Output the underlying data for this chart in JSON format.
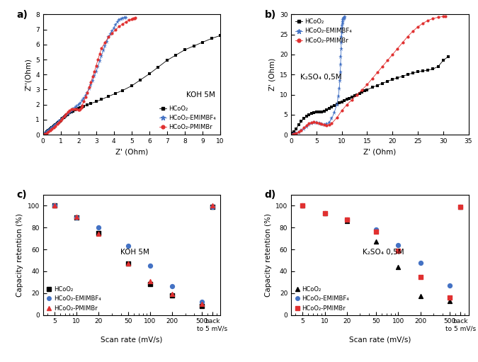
{
  "panel_a": {
    "title": "a)",
    "xlabel": "Z' (Ohm)",
    "ylabel": "Z''(Ohm)",
    "xlim": [
      0,
      10
    ],
    "ylim": [
      0,
      8
    ],
    "yticks": [
      0,
      1,
      2,
      3,
      4,
      5,
      6,
      7,
      8
    ],
    "xticks": [
      0,
      1,
      2,
      3,
      4,
      5,
      6,
      7,
      8,
      9,
      10
    ],
    "label_text": "KOH 5M",
    "black": {
      "x": [
        0.05,
        0.1,
        0.15,
        0.2,
        0.25,
        0.3,
        0.35,
        0.4,
        0.45,
        0.5,
        0.55,
        0.6,
        0.65,
        0.7,
        0.75,
        0.8,
        0.85,
        0.9,
        0.95,
        1.0,
        1.05,
        1.1,
        1.15,
        1.2,
        1.25,
        1.3,
        1.35,
        1.4,
        1.5,
        1.6,
        1.7,
        1.8,
        1.9,
        2.0,
        2.1,
        2.2,
        2.3,
        2.5,
        2.7,
        3.0,
        3.3,
        3.7,
        4.1,
        4.5,
        5.0,
        5.5,
        6.0,
        6.5,
        7.0,
        7.5,
        8.0,
        8.5,
        9.0,
        9.5,
        10.0
      ],
      "y": [
        0.03,
        0.07,
        0.12,
        0.17,
        0.22,
        0.27,
        0.32,
        0.37,
        0.42,
        0.47,
        0.52,
        0.57,
        0.62,
        0.67,
        0.72,
        0.77,
        0.82,
        0.87,
        0.92,
        0.97,
        1.02,
        1.07,
        1.12,
        1.17,
        1.22,
        1.27,
        1.32,
        1.37,
        1.45,
        1.52,
        1.58,
        1.64,
        1.7,
        1.75,
        1.8,
        1.85,
        1.9,
        2.0,
        2.08,
        2.2,
        2.35,
        2.55,
        2.75,
        2.95,
        3.25,
        3.65,
        4.05,
        4.5,
        4.95,
        5.3,
        5.65,
        5.9,
        6.15,
        6.4,
        6.6
      ]
    },
    "blue": {
      "x": [
        0.1,
        0.2,
        0.3,
        0.4,
        0.5,
        0.6,
        0.7,
        0.8,
        0.9,
        1.0,
        1.1,
        1.2,
        1.3,
        1.4,
        1.5,
        1.6,
        1.7,
        1.8,
        1.9,
        2.0,
        2.1,
        2.2,
        2.3,
        2.4,
        2.5,
        2.6,
        2.7,
        2.8,
        2.9,
        3.0,
        3.1,
        3.2,
        3.3,
        3.4,
        3.5,
        3.6,
        3.7,
        3.8,
        3.9,
        4.0,
        4.1,
        4.2,
        4.3,
        4.4,
        4.5,
        4.6,
        4.7
      ],
      "y": [
        0.08,
        0.18,
        0.28,
        0.38,
        0.48,
        0.58,
        0.68,
        0.78,
        0.88,
        0.98,
        1.08,
        1.18,
        1.28,
        1.38,
        1.48,
        1.58,
        1.68,
        1.78,
        1.88,
        1.98,
        2.1,
        2.25,
        2.4,
        2.6,
        2.8,
        3.05,
        3.3,
        3.6,
        3.9,
        4.2,
        4.55,
        4.9,
        5.25,
        5.6,
        5.9,
        6.2,
        6.5,
        6.7,
        6.9,
        7.1,
        7.3,
        7.5,
        7.62,
        7.7,
        7.75,
        7.78,
        7.8
      ]
    },
    "red": {
      "x": [
        0.1,
        0.2,
        0.3,
        0.4,
        0.5,
        0.6,
        0.7,
        0.8,
        0.9,
        1.0,
        1.1,
        1.2,
        1.3,
        1.4,
        1.5,
        1.6,
        1.7,
        1.8,
        1.9,
        2.0,
        2.05,
        2.1,
        2.15,
        2.2,
        2.3,
        2.4,
        2.5,
        2.6,
        2.7,
        2.8,
        2.9,
        3.0,
        3.1,
        3.2,
        3.3,
        3.5,
        3.7,
        3.9,
        4.1,
        4.3,
        4.5,
        4.7,
        4.85,
        5.0,
        5.1,
        5.15,
        5.2
      ],
      "y": [
        0.05,
        0.12,
        0.2,
        0.28,
        0.38,
        0.48,
        0.58,
        0.7,
        0.82,
        0.95,
        1.08,
        1.22,
        1.35,
        1.5,
        1.62,
        1.68,
        1.7,
        1.7,
        1.68,
        1.65,
        1.67,
        1.72,
        1.8,
        1.95,
        2.2,
        2.5,
        2.8,
        3.15,
        3.5,
        3.85,
        4.2,
        4.6,
        5.0,
        5.4,
        5.75,
        6.15,
        6.5,
        6.75,
        7.0,
        7.2,
        7.38,
        7.52,
        7.62,
        7.7,
        7.74,
        7.76,
        7.78
      ]
    }
  },
  "panel_b": {
    "title": "b)",
    "xlabel": "Z' (Ohm)",
    "ylabel": "Z' (Ohm)",
    "xlim": [
      0,
      35
    ],
    "ylim": [
      0,
      30
    ],
    "yticks": [
      0,
      5,
      10,
      15,
      20,
      25,
      30
    ],
    "xticks": [
      0,
      5,
      10,
      15,
      20,
      25,
      30,
      35
    ],
    "label_text": "K₂SO₄ 0,5M",
    "black": {
      "x": [
        0.3,
        0.6,
        1.0,
        1.5,
        2.0,
        2.5,
        3.0,
        3.5,
        4.0,
        4.5,
        5.0,
        5.5,
        6.0,
        6.5,
        7.0,
        7.5,
        8.0,
        8.5,
        9.0,
        9.5,
        10.0,
        10.5,
        11.0,
        11.5,
        12.0,
        12.5,
        13.0,
        13.5,
        14.0,
        14.5,
        15.0,
        16.0,
        17.0,
        18.0,
        19.0,
        20.0,
        21.0,
        22.0,
        23.0,
        24.0,
        25.0,
        26.0,
        27.0,
        28.0,
        29.0,
        30.0,
        31.0
      ],
      "y": [
        0.3,
        0.8,
        1.5,
        2.5,
        3.3,
        4.0,
        4.6,
        5.0,
        5.3,
        5.5,
        5.6,
        5.65,
        5.7,
        5.9,
        6.2,
        6.6,
        7.0,
        7.3,
        7.6,
        7.9,
        8.2,
        8.5,
        8.8,
        9.1,
        9.4,
        9.7,
        10.0,
        10.3,
        10.6,
        10.9,
        11.2,
        11.8,
        12.3,
        12.8,
        13.3,
        13.8,
        14.2,
        14.6,
        15.0,
        15.4,
        15.7,
        15.9,
        16.1,
        16.4,
        17.0,
        18.5,
        19.5
      ]
    },
    "blue": {
      "x": [
        0.3,
        0.6,
        1.0,
        1.5,
        2.0,
        2.5,
        3.0,
        3.5,
        4.0,
        4.5,
        5.0,
        5.5,
        6.0,
        6.5,
        7.0,
        7.5,
        8.0,
        8.5,
        9.0,
        9.3,
        9.5,
        9.6,
        9.7,
        9.75,
        9.8,
        9.85,
        9.9,
        9.95,
        10.0,
        10.05,
        10.1,
        10.15,
        10.2,
        10.25,
        10.3,
        10.35,
        10.4,
        10.45,
        10.5,
        10.55
      ],
      "y": [
        0.05,
        0.15,
        0.3,
        0.6,
        1.0,
        1.5,
        2.0,
        2.5,
        2.9,
        3.1,
        3.0,
        2.8,
        2.6,
        2.5,
        2.6,
        3.0,
        4.0,
        5.5,
        7.5,
        9.5,
        11.5,
        13.5,
        15.5,
        17.5,
        19.5,
        21.5,
        23.0,
        24.5,
        25.5,
        26.5,
        27.2,
        27.8,
        28.2,
        28.6,
        28.9,
        29.0,
        29.1,
        29.2,
        29.25,
        29.3
      ]
    },
    "red": {
      "x": [
        0.3,
        0.6,
        1.0,
        1.5,
        2.0,
        2.5,
        3.0,
        3.5,
        4.0,
        4.5,
        5.0,
        5.5,
        6.0,
        6.5,
        7.0,
        7.5,
        8.0,
        9.0,
        10.0,
        11.0,
        12.0,
        13.0,
        14.0,
        15.0,
        16.0,
        17.0,
        18.0,
        19.0,
        20.0,
        21.0,
        22.0,
        23.0,
        24.0,
        25.0,
        26.0,
        27.0,
        28.0,
        29.0,
        30.0,
        30.5
      ],
      "y": [
        0.05,
        0.15,
        0.35,
        0.7,
        1.1,
        1.7,
        2.3,
        2.8,
        3.1,
        3.2,
        3.1,
        2.9,
        2.7,
        2.5,
        2.4,
        2.5,
        2.8,
        4.2,
        6.0,
        7.5,
        8.7,
        10.0,
        11.2,
        12.5,
        14.0,
        15.5,
        17.0,
        18.5,
        20.0,
        21.5,
        23.0,
        24.5,
        25.8,
        26.9,
        27.8,
        28.5,
        29.0,
        29.3,
        29.5,
        29.55
      ]
    }
  },
  "panel_c": {
    "title": "c)",
    "xlabel": "Scan rate (mV/s)",
    "ylabel": "Capacity retention (%)",
    "label_text": "KOH 5M",
    "x_vals": [
      5,
      10,
      20,
      50,
      100,
      200,
      500,
      700
    ],
    "xtick_vals": [
      5,
      10,
      20,
      50,
      100,
      200,
      500,
      700
    ],
    "xtick_labels": [
      "5",
      "10",
      "20",
      "50",
      "100",
      "200",
      "500",
      "back\nto 5 mV/s"
    ],
    "black_y": [
      100,
      89,
      75,
      47,
      28,
      18,
      8,
      99
    ],
    "blue_y": [
      100,
      89,
      80,
      63,
      45,
      26,
      12,
      99
    ],
    "red_y": [
      100,
      90,
      74,
      47,
      31,
      19,
      10,
      100
    ]
  },
  "panel_d": {
    "title": "d)",
    "xlabel": "Scan rate (mV/s)",
    "ylabel": "Capacity retention (%)",
    "label_text": "K₂SO₄ 0,5M",
    "x_vals": [
      5,
      10,
      20,
      50,
      100,
      200,
      500,
      700
    ],
    "xtick_vals": [
      5,
      10,
      20,
      50,
      100,
      200,
      500,
      700
    ],
    "xtick_labels": [
      "5",
      "10",
      "20",
      "50",
      "100",
      "200",
      "500",
      "back\nto 5 mV/s"
    ],
    "black_y": [
      100,
      93,
      86,
      67,
      44,
      17,
      13,
      99
    ],
    "blue_y": [
      100,
      93,
      87,
      78,
      64,
      48,
      27,
      99
    ],
    "red_y": [
      100,
      93,
      87,
      76,
      59,
      35,
      16,
      99
    ]
  },
  "colors": {
    "black": "#000000",
    "blue": "#4472c4",
    "red": "#e03030"
  },
  "legend_labels": {
    "black": "HCoO₂",
    "blue": "HCoO₂-EMIMBF₄",
    "red": "HCoO₂-PMIMBr"
  }
}
